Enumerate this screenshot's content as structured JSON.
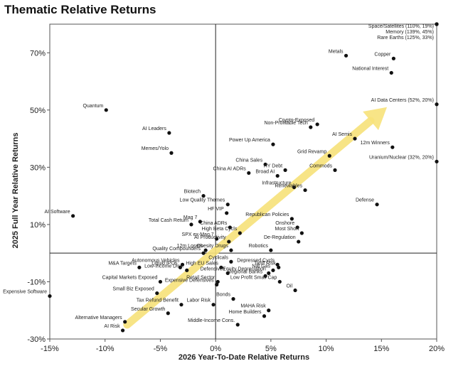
{
  "title": "Thematic Relative Returns",
  "chart_data": {
    "type": "scatter",
    "title": "Thematic Relative Returns",
    "xlabel": "2026 Year-To-Date Relative Returns",
    "ylabel": "2025 Full Year Relative Returns",
    "xlim": [
      -15,
      20
    ],
    "ylim": [
      -30,
      80
    ],
    "xticks": [
      -15,
      -10,
      -5,
      0,
      5,
      10,
      15,
      20
    ],
    "xtick_labels": [
      "-15%",
      "-10%",
      "-5%",
      "0%",
      "5%",
      "10%",
      "15%",
      "20%"
    ],
    "yticks": [
      -30,
      -10,
      10,
      30,
      50,
      70
    ],
    "ytick_labels": [
      "-30%",
      "-10%",
      "10%",
      "30%",
      "50%",
      "70%"
    ],
    "arrow": {
      "from": [
        -8,
        -25
      ],
      "to": [
        15.5,
        51
      ],
      "color": "#f7e27a"
    },
    "accent_color": "#f7e27a",
    "point_color": "#111111",
    "points": [
      {
        "label": "Space/Satellites (110%, 19%)",
        "x": 20,
        "y": 80
      },
      {
        "label": "Memory (139%, 45%)",
        "x": 20,
        "y": 80
      },
      {
        "label": "Rare Earths (125%, 33%)",
        "x": 20,
        "y": 80
      },
      {
        "label": "AI Data Centers (52%, 20%)",
        "x": 20,
        "y": 52
      },
      {
        "label": "Uranium/Nuclear (32%, 20%)",
        "x": 20,
        "y": 32
      },
      {
        "label": "Metals",
        "x": 11.8,
        "y": 69
      },
      {
        "label": "Copper",
        "x": 16.1,
        "y": 68
      },
      {
        "label": "National Interest",
        "x": 15.9,
        "y": 63
      },
      {
        "label": "Quantum",
        "x": -9.9,
        "y": 50
      },
      {
        "label": "Crypto-Exposed",
        "x": 9.2,
        "y": 45
      },
      {
        "label": "Non-Profitable Tech",
        "x": 8.6,
        "y": 44
      },
      {
        "label": "AI Leaders",
        "x": -4.2,
        "y": 42
      },
      {
        "label": "Power Up America",
        "x": 5.2,
        "y": 38
      },
      {
        "label": "AI Semis",
        "x": 12.6,
        "y": 40
      },
      {
        "label": "12m Winners",
        "x": 16.0,
        "y": 37
      },
      {
        "label": "Memes/Yolo",
        "x": -4.0,
        "y": 35
      },
      {
        "label": "Grid Revamp",
        "x": 10.3,
        "y": 34
      },
      {
        "label": "China Sales",
        "x": 4.5,
        "y": 31
      },
      {
        "label": "HY Debt",
        "x": 6.3,
        "y": 29
      },
      {
        "label": "Commods",
        "x": 10.8,
        "y": 29
      },
      {
        "label": "China AI ADRs",
        "x": 3.0,
        "y": 28
      },
      {
        "label": "Broad AI",
        "x": 5.6,
        "y": 27
      },
      {
        "label": "Infrastructure",
        "x": 7.1,
        "y": 23
      },
      {
        "label": "Renewables",
        "x": 8.1,
        "y": 22
      },
      {
        "label": "Biotech",
        "x": -1.1,
        "y": 20
      },
      {
        "label": "Defense",
        "x": 14.6,
        "y": 17
      },
      {
        "label": "Low Quality Themes",
        "x": 1.1,
        "y": 17
      },
      {
        "label": "AI Software",
        "x": -12.9,
        "y": 13
      },
      {
        "label": "HF VIP",
        "x": 1.0,
        "y": 14
      },
      {
        "label": "Mag 7",
        "x": -1.4,
        "y": 11
      },
      {
        "label": "Total Cash Return",
        "x": -2.2,
        "y": 10
      },
      {
        "label": "Republican Policies",
        "x": 6.9,
        "y": 12
      },
      {
        "label": "China ADRs",
        "x": 1.3,
        "y": 9
      },
      {
        "label": "Onshore",
        "x": 7.4,
        "y": 9
      },
      {
        "label": "High Beta Cycls",
        "x": 2.2,
        "y": 7
      },
      {
        "label": "Most Short",
        "x": 7.8,
        "y": 7
      },
      {
        "label": "SPX ex-Mag 7",
        "x": 0.1,
        "y": 5
      },
      {
        "label": "AI Productivity",
        "x": 1.2,
        "y": 4
      },
      {
        "label": "De-Regulation",
        "x": 7.5,
        "y": 4
      },
      {
        "label": "12m Losers",
        "x": -0.9,
        "y": 1
      },
      {
        "label": "Obesity Drugs",
        "x": 1.4,
        "y": 1
      },
      {
        "label": "Robotics",
        "x": 5.0,
        "y": 1
      },
      {
        "label": "Quality Compounders",
        "x": -1.1,
        "y": 0
      },
      {
        "label": "Autonomous Vehicles",
        "x": -3.0,
        "y": -4
      },
      {
        "label": "Cyclicals",
        "x": 1.4,
        "y": -3
      },
      {
        "label": "Depressed Cycls",
        "x": 5.6,
        "y": -4
      },
      {
        "label": "M&A Targets",
        "x": -6.9,
        "y": -5
      },
      {
        "label": "Liquid IPOs",
        "x": -3.2,
        "y": -5
      },
      {
        "label": "High EU Sales",
        "x": 0.5,
        "y": -5
      },
      {
        "label": "Tariff Risk",
        "x": 5.7,
        "y": -5
      },
      {
        "label": "Nat Gas",
        "x": 5.2,
        "y": -6
      },
      {
        "label": "Low-Income Disc.",
        "x": -2.6,
        "y": -6
      },
      {
        "label": "Defensives",
        "x": 1.1,
        "y": -7
      },
      {
        "label": "Equity Depreciation",
        "x": 4.8,
        "y": -7
      },
      {
        "label": "Regional Banks",
        "x": 4.5,
        "y": -8
      },
      {
        "label": "Capital Markets Exposed",
        "x": -5.0,
        "y": -10
      },
      {
        "label": "Retail Sector",
        "x": 0.2,
        "y": -10
      },
      {
        "label": "Low Profit Small Cap",
        "x": 5.8,
        "y": -10
      },
      {
        "label": "Expensive Defensives",
        "x": 0.1,
        "y": -11
      },
      {
        "label": "Oil",
        "x": 7.2,
        "y": -13
      },
      {
        "label": "Small Biz Exposed",
        "x": -5.3,
        "y": -14
      },
      {
        "label": "Expensive Software",
        "x": -15.0,
        "y": -15
      },
      {
        "label": "Bonds",
        "x": 1.6,
        "y": -16
      },
      {
        "label": "Tax Refund Benefit",
        "x": -3.1,
        "y": -18
      },
      {
        "label": "Labor Risk",
        "x": -0.2,
        "y": -18
      },
      {
        "label": "MAHA Risk",
        "x": 4.8,
        "y": -20
      },
      {
        "label": "Secular Growth",
        "x": -4.3,
        "y": -21
      },
      {
        "label": "Home Builders",
        "x": 4.4,
        "y": -22
      },
      {
        "label": "Alternative Managers",
        "x": -8.2,
        "y": -24
      },
      {
        "label": "Middle-Income Cons.",
        "x": 2.0,
        "y": -25
      },
      {
        "label": "AI Risk",
        "x": -8.4,
        "y": -27
      }
    ]
  }
}
